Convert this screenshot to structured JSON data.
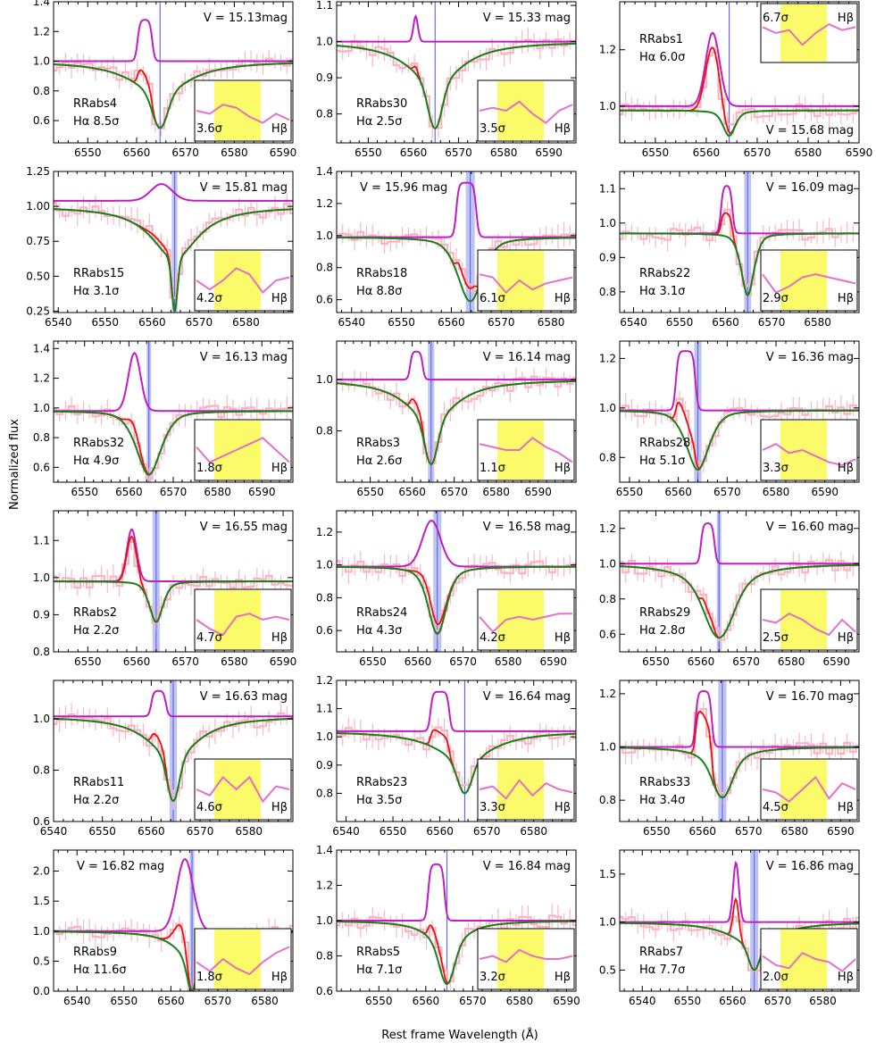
{
  "figure": {
    "ylabel": "Normalized flux",
    "xlabel": "Rest frame Wavelength (Å)"
  },
  "chart_data": [
    {
      "name": "RRabs4",
      "label": "RRabs4",
      "halpha": "Hα 8.5σ",
      "hbeta_sig": "3.6σ",
      "hbeta": "Hβ",
      "vmag": "V = 15.13mag",
      "xlim": [
        6543,
        6592
      ],
      "ylim": [
        0.45,
        1.4
      ],
      "xticks": [
        6550,
        6560,
        6570,
        6580,
        6590
      ],
      "yticks": [
        0.6,
        0.8,
        1.0,
        1.2,
        1.4
      ],
      "center": 6564.8,
      "center_width": 0,
      "depth": 0.45,
      "core_width": 1.5,
      "wing_width": 7,
      "emission": [
        6560.2,
        6563.2,
        0.28
      ],
      "emission_shape": "box",
      "level": 1.0,
      "emission_base": 1.0,
      "red_frac": 0.55,
      "inset_side": "right",
      "vmag_pos": "top-right",
      "label_pos": "bottom-left",
      "inset_profile": [
        0.5,
        0.45,
        0.6,
        0.55,
        0.4,
        0.3,
        0.45,
        0.35
      ]
    },
    {
      "name": "RRabs30",
      "label": "RRabs30",
      "halpha": "Hα 2.5σ",
      "hbeta_sig": "3.5σ",
      "hbeta": "Hβ",
      "vmag": "V = 15.33 mag",
      "xlim": [
        6543,
        6596
      ],
      "ylim": [
        0.72,
        1.11
      ],
      "xticks": [
        6550,
        6560,
        6570,
        6580,
        6590
      ],
      "yticks": [
        0.8,
        0.9,
        1.0,
        1.1
      ],
      "center": 6564.8,
      "center_width": 0,
      "depth": 0.24,
      "core_width": 1.5,
      "wing_width": 7,
      "emission": [
        6559.5,
        6561.5,
        0.07
      ],
      "emission_shape": "gauss",
      "level": 1.0,
      "emission_base": 1.0,
      "red_frac": 0.3,
      "inset_side": "right",
      "vmag_pos": "top-right",
      "label_pos": "bottom-left",
      "inset_profile": [
        0.5,
        0.55,
        0.5,
        0.65,
        0.45,
        0.3,
        0.5,
        0.6
      ]
    },
    {
      "name": "RRabs1",
      "label": "RRabs1",
      "halpha": "Hα 6.0σ",
      "hbeta_sig": "6.7σ",
      "hbeta": "Hβ",
      "vmag": "V = 15.68 mag",
      "xlim": [
        6543,
        6590
      ],
      "ylim": [
        0.87,
        1.37
      ],
      "xticks": [
        6550,
        6560,
        6570,
        6580,
        6590
      ],
      "yticks": [
        1.0,
        1.2
      ],
      "center": 6564.5,
      "center_width": 0,
      "depth": 0.09,
      "core_width": 1.2,
      "wing_width": 1.5,
      "emission": [
        6558.5,
        6564.0,
        0.26
      ],
      "emission_shape": "gauss",
      "level": 0.985,
      "emission_base": 1.0,
      "red_frac": 0.9,
      "inset_side": "top-right",
      "vmag_pos": "bottom-right",
      "label_pos": "top-left",
      "inset_profile": [
        0.6,
        0.5,
        0.55,
        0.3,
        0.5,
        0.65,
        0.55,
        0.6
      ]
    },
    {
      "name": "RRabs15",
      "label": "RRabs15",
      "halpha": "Hα 3.1σ",
      "hbeta_sig": "4.2σ",
      "hbeta": "Hβ",
      "vmag": "V = 15.81 mag",
      "xlim": [
        6539,
        6590
      ],
      "ylim": [
        0.24,
        1.25
      ],
      "xticks": [
        6540,
        6550,
        6560,
        6570,
        6580
      ],
      "yticks": [
        0.25,
        0.5,
        0.75,
        1.0,
        1.25
      ],
      "center": 6564.8,
      "center_width": 1.2,
      "depth": 0.75,
      "core_width": 0.6,
      "wing_width": 6,
      "emission": [
        6557.5,
        6566.5,
        0.12
      ],
      "emission_shape": "gauss",
      "level": 1.0,
      "emission_base": 1.04,
      "red_frac": 0.5,
      "inset_side": "right",
      "vmag_pos": "top-right",
      "label_pos": "bottom-left",
      "inset_profile": [
        0.5,
        0.35,
        0.5,
        0.7,
        0.6,
        0.3,
        0.5,
        0.55
      ]
    },
    {
      "name": "RRabs18",
      "label": "RRabs18",
      "halpha": "Hα 8.8σ",
      "hbeta_sig": "6.1σ",
      "hbeta": "Hβ",
      "vmag": "V = 15.96 mag",
      "xlim": [
        6537,
        6585
      ],
      "ylim": [
        0.52,
        1.4
      ],
      "xticks": [
        6540,
        6550,
        6560,
        6570,
        6580
      ],
      "yticks": [
        0.6,
        0.8,
        1.0,
        1.2,
        1.4
      ],
      "center": 6563.8,
      "center_width": 1.8,
      "depth": 0.4,
      "core_width": 2.5,
      "wing_width": 3,
      "emission": [
        6561.0,
        6565.0,
        0.34
      ],
      "emission_shape": "box",
      "level": 0.99,
      "emission_base": 0.99,
      "red_frac": 0.4,
      "inset_side": "right",
      "vmag_pos": "top-left",
      "label_pos": "bottom-left",
      "inset_profile": [
        0.6,
        0.55,
        0.3,
        0.5,
        0.35,
        0.45,
        0.5,
        0.55
      ]
    },
    {
      "name": "RRabs22",
      "label": "RRabs22",
      "halpha": "Hα 3.1σ",
      "hbeta_sig": "2.9σ",
      "hbeta": "Hβ",
      "vmag": "V = 16.09 mag",
      "xlim": [
        6537,
        6589
      ],
      "ylim": [
        0.74,
        1.15
      ],
      "xticks": [
        6540,
        6550,
        6560,
        6570,
        6580
      ],
      "yticks": [
        0.8,
        0.9,
        1.0,
        1.1
      ],
      "center": 6564.8,
      "center_width": 1.5,
      "depth": 0.18,
      "core_width": 1.5,
      "wing_width": 1.5,
      "emission": [
        6559.0,
        6561.5,
        0.14
      ],
      "emission_shape": "box",
      "level": 0.97,
      "emission_base": 0.97,
      "red_frac": 0.5,
      "inset_side": "right",
      "vmag_pos": "top-right",
      "label_pos": "bottom-left",
      "inset_profile": [
        0.6,
        0.3,
        0.4,
        0.55,
        0.6,
        0.55,
        0.5,
        0.45
      ]
    },
    {
      "name": "RRabs32",
      "label": "RRabs32",
      "halpha": "Hα 4.9σ",
      "hbeta_sig": "1.8σ",
      "hbeta": "Hβ",
      "vmag": "V = 16.13 mag",
      "xlim": [
        6543,
        6597
      ],
      "ylim": [
        0.5,
        1.45
      ],
      "xticks": [
        6550,
        6560,
        6570,
        6580,
        6590
      ],
      "yticks": [
        0.6,
        0.8,
        1.0,
        1.2,
        1.4
      ],
      "center": 6564.5,
      "center_width": 1.0,
      "depth": 0.43,
      "core_width": 3,
      "wing_width": 3,
      "emission": [
        6558.5,
        6564.0,
        0.39
      ],
      "emission_shape": "gauss",
      "level": 0.98,
      "emission_base": 0.98,
      "red_frac": 0.35,
      "inset_side": "right",
      "vmag_pos": "top-right",
      "label_pos": "bottom-left",
      "inset_profile": [
        0.55,
        0.3,
        0.4,
        0.5,
        0.6,
        0.7,
        0.5,
        0.3
      ]
    },
    {
      "name": "RRabs3",
      "label": "RRabs3",
      "halpha": "Hα 2.6σ",
      "hbeta_sig": "1.1σ",
      "hbeta": "Hβ",
      "vmag": "V = 16.14 mag",
      "xlim": [
        6542,
        6599
      ],
      "ylim": [
        0.6,
        1.15
      ],
      "xticks": [
        6550,
        6560,
        6570,
        6580,
        6590
      ],
      "yticks": [
        0.8,
        1.0
      ],
      "center": 6564.5,
      "center_width": 1.5,
      "depth": 0.33,
      "core_width": 1.5,
      "wing_width": 7,
      "emission": [
        6559.5,
        6562.5,
        0.11
      ],
      "emission_shape": "box",
      "level": 1.0,
      "emission_base": 1.0,
      "red_frac": 0.5,
      "inset_side": "right",
      "vmag_pos": "top-right",
      "label_pos": "bottom-left",
      "inset_profile": [
        0.6,
        0.55,
        0.5,
        0.5,
        0.7,
        0.55,
        0.45,
        0.3
      ]
    },
    {
      "name": "RRabs28",
      "label": "RRabs28",
      "halpha": "Hα 5.1σ",
      "hbeta_sig": "3.3σ",
      "hbeta": "Hβ",
      "vmag": "V = 16.36 mag",
      "xlim": [
        6548,
        6597
      ],
      "ylim": [
        0.7,
        1.27
      ],
      "xticks": [
        6550,
        6560,
        6570,
        6580,
        6590
      ],
      "yticks": [
        0.8,
        1.0,
        1.2
      ],
      "center": 6564.0,
      "center_width": 1.5,
      "depth": 0.24,
      "core_width": 2.5,
      "wing_width": 2.5,
      "emission": [
        6559.5,
        6563.5,
        0.24
      ],
      "emission_shape": "box",
      "level": 0.99,
      "emission_base": 0.99,
      "red_frac": 0.5,
      "inset_side": "right",
      "vmag_pos": "top-right",
      "label_pos": "bottom-left",
      "inset_profile": [
        0.5,
        0.6,
        0.45,
        0.5,
        0.4,
        0.3,
        0.25,
        0.35
      ]
    },
    {
      "name": "RRabs2",
      "label": "RRabs2",
      "halpha": "Hα 2.2σ",
      "hbeta_sig": "4.7σ",
      "hbeta": "Hβ",
      "vmag": "V = 16.55 mag",
      "xlim": [
        6543,
        6592
      ],
      "ylim": [
        0.8,
        1.18
      ],
      "xticks": [
        6550,
        6560,
        6570,
        6580,
        6590
      ],
      "yticks": [
        0.8,
        0.9,
        1.0,
        1.1
      ],
      "center": 6564.0,
      "center_width": 1.5,
      "depth": 0.11,
      "core_width": 1.5,
      "wing_width": 1.5,
      "emission": [
        6557.0,
        6561.0,
        0.14
      ],
      "emission_shape": "gauss",
      "level": 0.99,
      "emission_base": 0.99,
      "red_frac": 0.9,
      "inset_side": "right",
      "vmag_pos": "top-right",
      "label_pos": "bottom-left",
      "inset_profile": [
        0.5,
        0.35,
        0.25,
        0.55,
        0.6,
        0.5,
        0.55,
        0.5
      ]
    },
    {
      "name": "RRabs24",
      "label": "RRabs24",
      "halpha": "Hα 4.3σ",
      "hbeta_sig": "4.2σ",
      "hbeta": "Hβ",
      "vmag": "V = 16.58 mag",
      "xlim": [
        6542,
        6595
      ],
      "ylim": [
        0.47,
        1.33
      ],
      "xticks": [
        6550,
        6560,
        6570,
        6580,
        6590
      ],
      "yticks": [
        0.6,
        0.8,
        1.0,
        1.2
      ],
      "center": 6564.3,
      "center_width": 1.8,
      "depth": 0.41,
      "core_width": 2,
      "wing_width": 2.5,
      "emission": [
        6559.0,
        6567.0,
        0.28
      ],
      "emission_shape": "gauss",
      "level": 0.99,
      "emission_base": 0.99,
      "red_frac": 0.45,
      "inset_side": "right",
      "vmag_pos": "top-right",
      "label_pos": "bottom-left",
      "inset_profile": [
        0.55,
        0.3,
        0.5,
        0.55,
        0.5,
        0.55,
        0.6,
        0.6
      ]
    },
    {
      "name": "RRabs29",
      "label": "RRabs29",
      "halpha": "Hα 2.8σ",
      "hbeta_sig": "2.5σ",
      "hbeta": "Hβ",
      "vmag": "V = 16.60 mag",
      "xlim": [
        6542,
        6595
      ],
      "ylim": [
        0.5,
        1.3
      ],
      "xticks": [
        6550,
        6560,
        6570,
        6580,
        6590
      ],
      "yticks": [
        0.6,
        0.8,
        1.0,
        1.2
      ],
      "center": 6564.0,
      "center_width": 1.0,
      "depth": 0.42,
      "core_width": 3,
      "wing_width": 6,
      "emission": [
        6560.0,
        6563.0,
        0.23
      ],
      "emission_shape": "box",
      "level": 1.0,
      "emission_base": 1.0,
      "red_frac": 0.4,
      "inset_side": "right",
      "vmag_pos": "top-right",
      "label_pos": "bottom-left",
      "inset_profile": [
        0.5,
        0.45,
        0.6,
        0.5,
        0.35,
        0.25,
        0.5,
        0.3
      ]
    },
    {
      "name": "RRabs11",
      "label": "RRabs11",
      "halpha": "Hα 2.2σ",
      "hbeta_sig": "4.6σ",
      "hbeta": "Hβ",
      "vmag": "V = 16.63 mag",
      "xlim": [
        6540,
        6589
      ],
      "ylim": [
        0.6,
        1.15
      ],
      "xticks": [
        6540,
        6550,
        6560,
        6570,
        6580
      ],
      "yticks": [
        0.6,
        0.8,
        1.0
      ],
      "center": 6564.5,
      "center_width": 1.5,
      "depth": 0.33,
      "core_width": 1.2,
      "wing_width": 6,
      "emission": [
        6560.0,
        6563.0,
        0.1
      ],
      "emission_shape": "box",
      "level": 1.01,
      "emission_base": 1.01,
      "red_frac": 0.6,
      "inset_side": "right",
      "vmag_pos": "top-right",
      "label_pos": "bottom-left",
      "inset_profile": [
        0.5,
        0.4,
        0.7,
        0.5,
        0.7,
        0.3,
        0.55,
        0.5
      ]
    },
    {
      "name": "RRabs23",
      "label": "RRabs23",
      "halpha": "Hα 3.5σ",
      "hbeta_sig": "3.3σ",
      "hbeta": "Hβ",
      "vmag": "V = 16.64 mag",
      "xlim": [
        6538,
        6589
      ],
      "ylim": [
        0.7,
        1.2
      ],
      "xticks": [
        6540,
        6550,
        6560,
        6570,
        6580
      ],
      "yticks": [
        0.8,
        0.9,
        1.0,
        1.1,
        1.2
      ],
      "center": 6565.3,
      "center_width": 0,
      "depth": 0.22,
      "core_width": 1.5,
      "wing_width": 7,
      "emission": [
        6558.0,
        6562.0,
        0.14
      ],
      "emission_shape": "box",
      "level": 1.02,
      "emission_base": 1.02,
      "red_frac": 0.5,
      "inset_side": "right",
      "vmag_pos": "top-right",
      "label_pos": "bottom-left",
      "inset_profile": [
        0.5,
        0.55,
        0.35,
        0.65,
        0.4,
        0.6,
        0.5,
        0.45
      ]
    },
    {
      "name": "RRabs33",
      "label": "RRabs33",
      "halpha": "Hα 3.4σ",
      "hbeta_sig": "4.5σ",
      "hbeta": "Hβ",
      "vmag": "V = 16.70 mag",
      "xlim": [
        6542,
        6594
      ],
      "ylim": [
        0.72,
        1.25
      ],
      "xticks": [
        6550,
        6560,
        6570,
        6580,
        6590
      ],
      "yticks": [
        0.8,
        1.0,
        1.2
      ],
      "center": 6564.3,
      "center_width": 1.8,
      "depth": 0.19,
      "core_width": 2,
      "wing_width": 4,
      "emission": [
        6558.5,
        6562.0,
        0.21
      ],
      "emission_shape": "box",
      "level": 1.0,
      "emission_base": 1.0,
      "red_frac": 0.9,
      "inset_side": "right",
      "vmag_pos": "top-right",
      "label_pos": "bottom-left",
      "inset_profile": [
        0.5,
        0.45,
        0.3,
        0.5,
        0.7,
        0.35,
        0.6,
        0.5
      ]
    },
    {
      "name": "RRabs9",
      "label": "RRabs9",
      "halpha": "Hα 11.6σ",
      "hbeta_sig": "1.8σ",
      "hbeta": "Hβ",
      "vmag": "V = 16.82 mag",
      "xlim": [
        6535,
        6586
      ],
      "ylim": [
        0.0,
        2.35
      ],
      "xticks": [
        6540,
        6550,
        6560,
        6570,
        6580
      ],
      "yticks": [
        0.0,
        0.5,
        1.0,
        1.5,
        2.0
      ],
      "center": 6564.5,
      "center_width": 1.0,
      "depth": 1.0,
      "core_width": 1.0,
      "wing_width": 4,
      "emission": [
        6559.5,
        6566.5,
        1.2
      ],
      "emission_shape": "gauss",
      "level": 1.0,
      "emission_base": 1.0,
      "red_frac": 0.75,
      "inset_side": "right",
      "vmag_pos": "top-left",
      "label_pos": "bottom-left",
      "inset_profile": [
        0.45,
        0.3,
        0.5,
        0.35,
        0.25,
        0.45,
        0.6,
        0.7
      ]
    },
    {
      "name": "RRabs5",
      "label": "RRabs5",
      "halpha": "Hα 7.1σ",
      "hbeta_sig": "3.2σ",
      "hbeta": "Hβ",
      "vmag": "V = 16.84 mag",
      "xlim": [
        6541,
        6592
      ],
      "ylim": [
        0.6,
        1.4
      ],
      "xticks": [
        6550,
        6560,
        6570,
        6580,
        6590
      ],
      "yticks": [
        0.6,
        0.8,
        1.0,
        1.2,
        1.4
      ],
      "center": 6564.5,
      "center_width": 0,
      "depth": 0.36,
      "core_width": 1.5,
      "wing_width": 4,
      "emission": [
        6560.5,
        6564.0,
        0.32
      ],
      "emission_shape": "box",
      "level": 1.0,
      "emission_base": 1.0,
      "red_frac": 0.35,
      "inset_side": "right",
      "vmag_pos": "top-right",
      "label_pos": "bottom-left",
      "inset_profile": [
        0.5,
        0.55,
        0.45,
        0.65,
        0.55,
        0.5,
        0.5,
        0.55
      ]
    },
    {
      "name": "RRabs7",
      "label": "RRabs7",
      "halpha": "Hα 7.7σ",
      "hbeta_sig": "2.0σ",
      "hbeta": "Hβ",
      "vmag": "V = 16.86 mag",
      "xlim": [
        6535,
        6588
      ],
      "ylim": [
        0.28,
        1.75
      ],
      "xticks": [
        6540,
        6550,
        6560,
        6570,
        6580
      ],
      "yticks": [
        0.5,
        1.0,
        1.5
      ],
      "center": 6564.8,
      "center_width": 1.8,
      "depth": 0.5,
      "core_width": 1.2,
      "wing_width": 6,
      "emission": [
        6559.5,
        6562.0,
        0.62
      ],
      "emission_shape": "gauss",
      "level": 1.0,
      "emission_base": 1.0,
      "red_frac": 0.8,
      "inset_side": "right",
      "vmag_pos": "top-right",
      "label_pos": "bottom-left",
      "inset_profile": [
        0.55,
        0.4,
        0.35,
        0.6,
        0.5,
        0.45,
        0.3,
        0.5
      ]
    }
  ]
}
